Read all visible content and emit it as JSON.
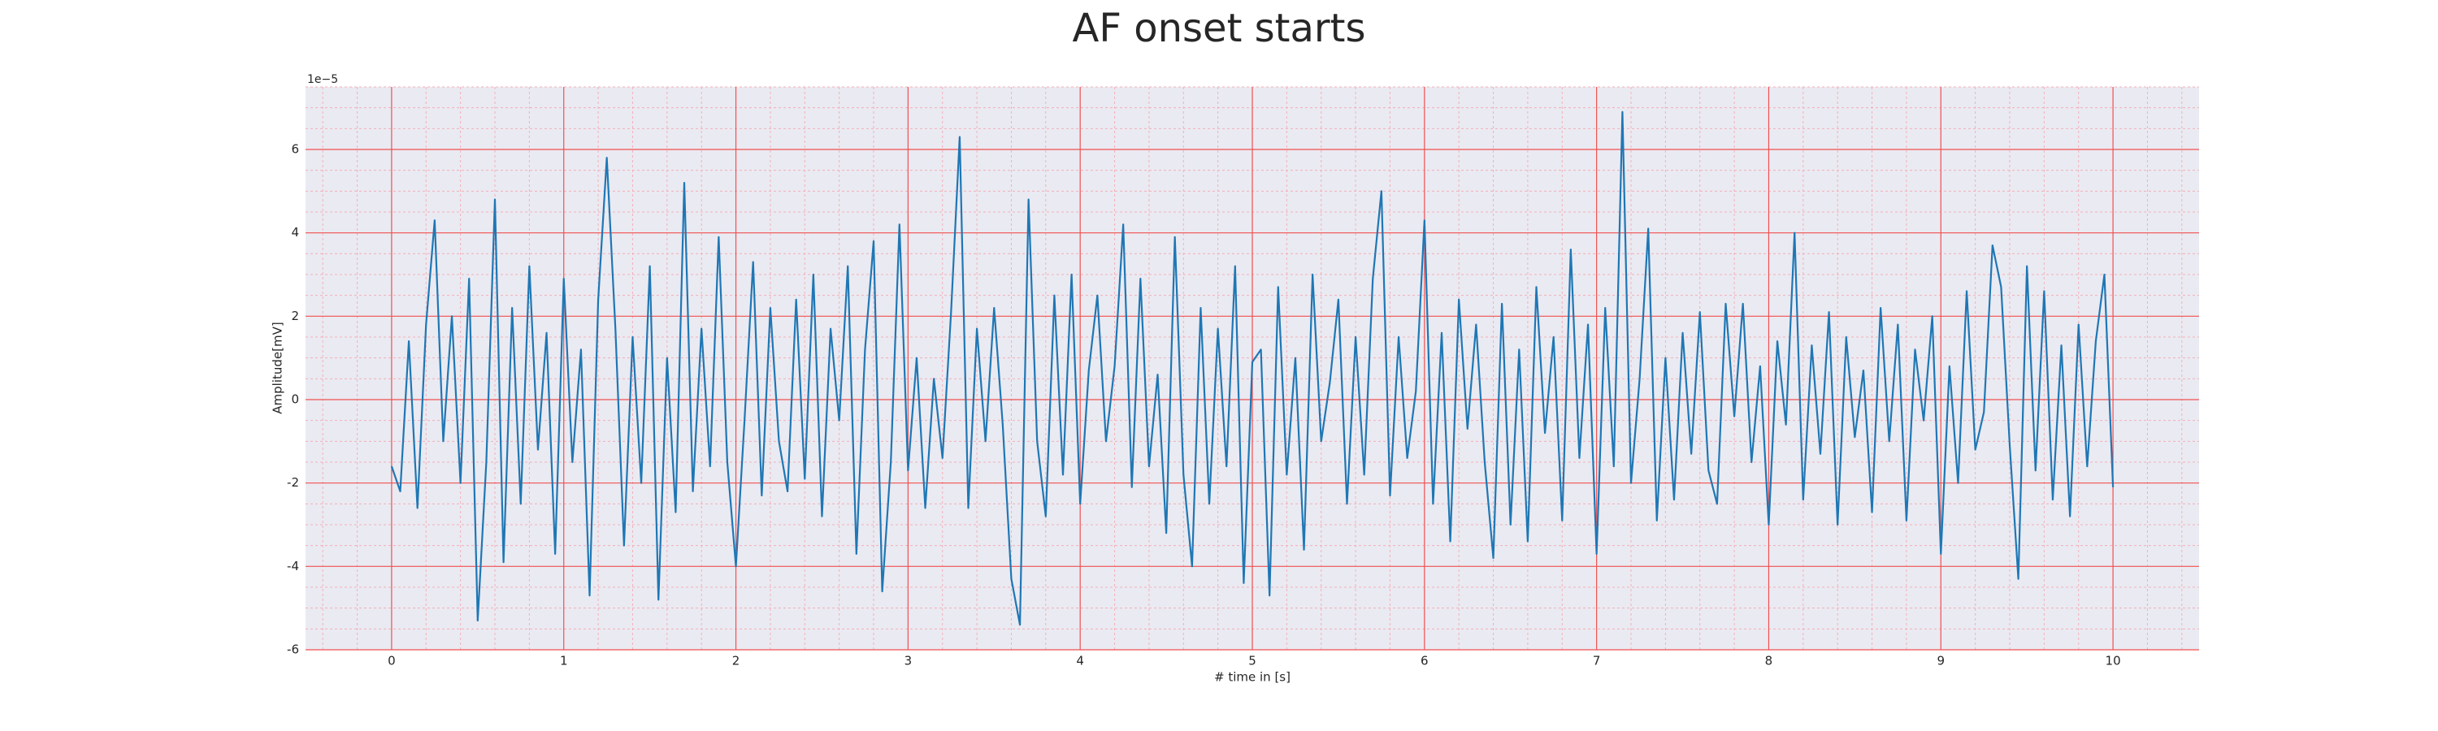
{
  "chart_data": {
    "type": "line",
    "title": "AF onset starts",
    "xlabel": "# time in [s]",
    "ylabel": "Amplitude[mV]",
    "offset_text": "1e−5",
    "background": "#eaeaf2",
    "grid": true,
    "grid_color": "#f05050",
    "minor_grid_color": "#f4b0b8",
    "xlim": [
      -0.5,
      10.5
    ],
    "ylim": [
      -6,
      7.5
    ],
    "xticks": [
      0,
      1,
      2,
      3,
      4,
      5,
      6,
      7,
      8,
      9,
      10
    ],
    "yticks": [
      -6,
      -4,
      -2,
      0,
      2,
      4,
      6
    ],
    "xticks_minor": [
      -0.4,
      -0.2,
      0.2,
      0.4,
      0.6,
      0.8,
      1.2,
      1.4,
      1.6,
      1.8,
      2.2,
      2.4,
      2.6,
      2.8,
      3.2,
      3.4,
      3.6,
      3.8,
      4.2,
      4.4,
      4.6,
      4.8,
      5.2,
      5.4,
      5.6,
      5.8,
      6.2,
      6.4,
      6.6,
      6.8,
      7.2,
      7.4,
      7.6,
      7.8,
      8.2,
      8.4,
      8.6,
      8.8,
      9.2,
      9.4,
      9.6,
      9.8,
      10.2,
      10.4
    ],
    "yticks_minor": [
      -5.5,
      -5,
      -4.5,
      -3.5,
      -3,
      -2.5,
      -1.5,
      -1,
      -0.5,
      0.5,
      1,
      1.5,
      2.5,
      3,
      3.5,
      4.5,
      5,
      5.5,
      6.5,
      7,
      7.5
    ],
    "x": [
      0,
      0.05,
      0.1,
      0.15,
      0.2,
      0.25,
      0.3,
      0.35,
      0.4,
      0.45,
      0.5,
      0.55,
      0.6,
      0.65,
      0.7,
      0.75,
      0.8,
      0.85,
      0.9,
      0.95,
      1,
      1.05,
      1.1,
      1.15,
      1.2,
      1.25,
      1.3,
      1.35,
      1.4,
      1.45,
      1.5,
      1.55,
      1.6,
      1.65,
      1.7,
      1.75,
      1.8,
      1.85,
      1.9,
      1.95,
      2,
      2.05,
      2.1,
      2.15,
      2.2,
      2.25,
      2.3,
      2.35,
      2.4,
      2.45,
      2.5,
      2.55,
      2.6,
      2.65,
      2.7,
      2.75,
      2.8,
      2.85,
      2.9,
      2.95,
      3,
      3.05,
      3.1,
      3.15,
      3.2,
      3.25,
      3.3,
      3.35,
      3.4,
      3.45,
      3.5,
      3.55,
      3.6,
      3.65,
      3.7,
      3.75,
      3.8,
      3.85,
      3.9,
      3.95,
      4,
      4.05,
      4.1,
      4.15,
      4.2,
      4.25,
      4.3,
      4.35,
      4.4,
      4.45,
      4.5,
      4.55,
      4.6,
      4.65,
      4.7,
      4.75,
      4.8,
      4.85,
      4.9,
      4.95,
      5,
      5.05,
      5.1,
      5.15,
      5.2,
      5.25,
      5.3,
      5.35,
      5.4,
      5.45,
      5.5,
      5.55,
      5.6,
      5.65,
      5.7,
      5.75,
      5.8,
      5.85,
      5.9,
      5.95,
      6,
      6.05,
      6.1,
      6.15,
      6.2,
      6.25,
      6.3,
      6.35,
      6.4,
      6.45,
      6.5,
      6.55,
      6.6,
      6.65,
      6.7,
      6.75,
      6.8,
      6.85,
      6.9,
      6.95,
      7,
      7.05,
      7.1,
      7.15,
      7.2,
      7.25,
      7.3,
      7.35,
      7.4,
      7.45,
      7.5,
      7.55,
      7.6,
      7.65,
      7.7,
      7.75,
      7.8,
      7.85,
      7.9,
      7.95,
      8,
      8.05,
      8.1,
      8.15,
      8.2,
      8.25,
      8.3,
      8.35,
      8.4,
      8.45,
      8.5,
      8.55,
      8.6,
      8.65,
      8.7,
      8.75,
      8.8,
      8.85,
      8.9,
      8.95,
      9,
      9.05,
      9.1,
      9.15,
      9.2,
      9.25,
      9.3,
      9.35,
      9.4,
      9.45,
      9.5,
      9.55,
      9.6,
      9.65,
      9.7,
      9.75,
      9.8,
      9.85,
      9.9,
      9.95,
      10
    ],
    "series": [
      {
        "color": "#1f77b4",
        "values": [
          -1.6,
          -2.2,
          1.4,
          -2.6,
          1.8,
          4.3,
          -1.0,
          2.0,
          -2.0,
          2.9,
          -5.3,
          -1.5,
          4.8,
          -3.9,
          2.2,
          -2.5,
          3.2,
          -1.2,
          1.6,
          -3.7,
          2.9,
          -1.5,
          1.2,
          -4.7,
          2.4,
          5.8,
          1.7,
          -3.5,
          1.5,
          -2.0,
          3.2,
          -4.8,
          1.0,
          -2.7,
          5.2,
          -2.2,
          1.7,
          -1.6,
          3.9,
          -1.5,
          -4.0,
          -0.5,
          3.3,
          -2.3,
          2.2,
          -1.0,
          -2.2,
          2.4,
          -1.9,
          3.0,
          -2.8,
          1.7,
          -0.5,
          3.2,
          -3.7,
          1.2,
          3.8,
          -4.6,
          -1.5,
          4.2,
          -1.7,
          1.0,
          -2.6,
          0.5,
          -1.4,
          2.1,
          6.3,
          -2.6,
          1.7,
          -1.0,
          2.2,
          -0.6,
          -4.3,
          -5.4,
          4.8,
          -1.0,
          -2.8,
          2.5,
          -1.8,
          3.0,
          -2.5,
          0.7,
          2.5,
          -1.0,
          0.8,
          4.2,
          -2.1,
          2.9,
          -1.6,
          0.6,
          -3.2,
          3.9,
          -1.8,
          -4.0,
          2.2,
          -2.5,
          1.7,
          -1.6,
          3.2,
          -4.4,
          0.9,
          1.2,
          -4.7,
          2.7,
          -1.8,
          1.0,
          -3.6,
          3.0,
          -1.0,
          0.4,
          2.4,
          -2.5,
          1.5,
          -1.8,
          2.9,
          5.0,
          -2.3,
          1.5,
          -1.4,
          0.2,
          4.3,
          -2.5,
          1.6,
          -3.4,
          2.4,
          -0.7,
          1.8,
          -1.5,
          -3.8,
          2.3,
          -3.0,
          1.2,
          -3.4,
          2.7,
          -0.8,
          1.5,
          -2.9,
          3.6,
          -1.4,
          1.8,
          -3.7,
          2.2,
          -1.6,
          6.9,
          -2.0,
          0.5,
          4.1,
          -2.9,
          1.0,
          -2.4,
          1.6,
          -1.3,
          2.1,
          -1.7,
          -2.5,
          2.3,
          -0.4,
          2.3,
          -1.5,
          0.8,
          -3.0,
          1.4,
          -0.6,
          4.0,
          -2.4,
          1.3,
          -1.3,
          2.1,
          -3.0,
          1.5,
          -0.9,
          0.7,
          -2.7,
          2.2,
          -1.0,
          1.8,
          -2.9,
          1.2,
          -0.5,
          2.0,
          -3.7,
          0.8,
          -2.0,
          2.6,
          -1.2,
          -0.3,
          3.7,
          2.7,
          -1.1,
          -4.3,
          3.2,
          -1.7,
          2.6,
          -2.4,
          1.3,
          -2.8,
          1.8,
          -1.6,
          1.4,
          3.0,
          -2.1
        ]
      }
    ]
  }
}
